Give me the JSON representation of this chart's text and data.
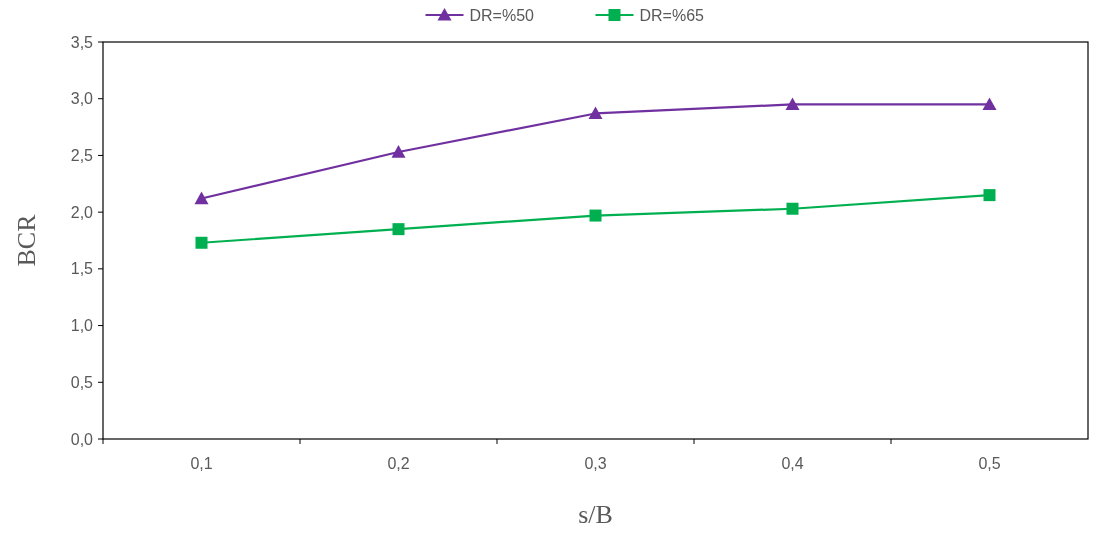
{
  "chart_data": {
    "type": "line",
    "xlabel": "s/B",
    "ylabel": "BCR",
    "categories": [
      "0,1",
      "0,2",
      "0,3",
      "0,4",
      "0,5"
    ],
    "ylim": [
      0,
      3.5
    ],
    "yticks": [
      {
        "value": 0,
        "label": "0,0"
      },
      {
        "value": 0.5,
        "label": "0,5"
      },
      {
        "value": 1,
        "label": "1,0"
      },
      {
        "value": 1.5,
        "label": "1,5"
      },
      {
        "value": 2,
        "label": "2,0"
      },
      {
        "value": 2.5,
        "label": "2,5"
      },
      {
        "value": 3,
        "label": "3,0"
      },
      {
        "value": 3.5,
        "label": "3,5"
      }
    ],
    "grid": false,
    "legend": "top",
    "line_style": "solid",
    "series": [
      {
        "name": "DR=%50",
        "color": "#7030a0",
        "marker": "triangle",
        "values": [
          2.12,
          2.53,
          2.87,
          2.95,
          2.95
        ]
      },
      {
        "name": "DR=%65",
        "color": "#00b050",
        "marker": "square",
        "values": [
          1.73,
          1.85,
          1.97,
          2.03,
          2.15
        ]
      }
    ]
  }
}
